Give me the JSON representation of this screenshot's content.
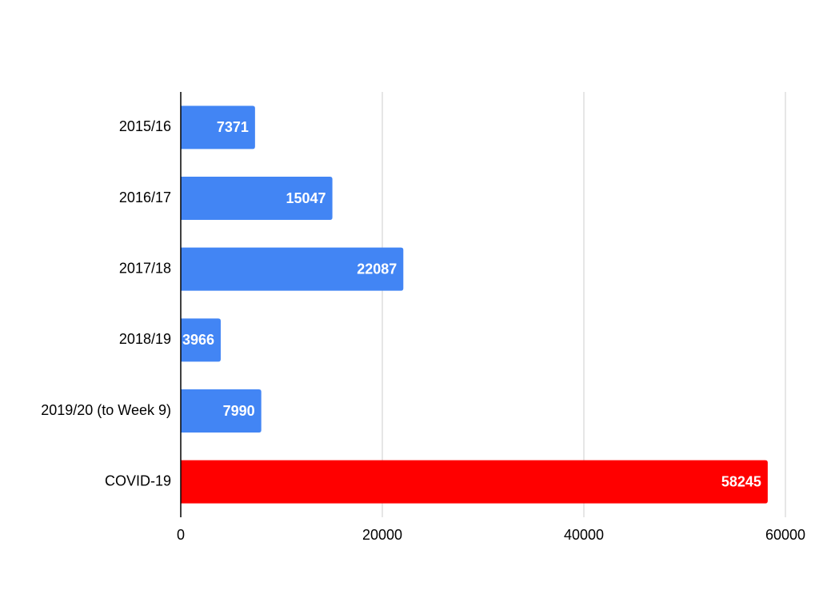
{
  "chart_data": {
    "type": "bar",
    "orientation": "horizontal",
    "categories": [
      "2015/16",
      "2016/17",
      "2017/18",
      "2018/19",
      "2019/20 (to Week 9)",
      "COVID-19"
    ],
    "values": [
      7371,
      15047,
      22087,
      3966,
      7990,
      58245
    ],
    "colors": [
      "#4285f4",
      "#4285f4",
      "#4285f4",
      "#4285f4",
      "#4285f4",
      "#ff0000"
    ],
    "xlim": [
      0,
      60000
    ],
    "xticks": [
      0,
      20000,
      40000,
      60000
    ],
    "grid": true
  }
}
